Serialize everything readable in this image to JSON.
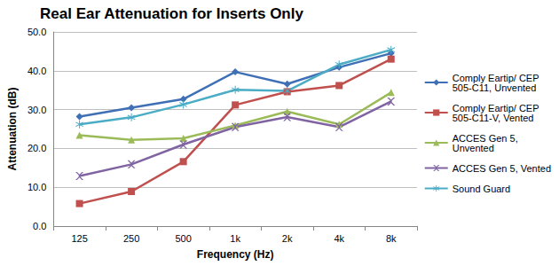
{
  "chart_data": {
    "type": "line",
    "title": "Real Ear Attenuation for Inserts Only",
    "x_label": "Frequency (Hz)",
    "y_label": "Attenuation (dB)",
    "categories": [
      "125",
      "250",
      "500",
      "1k",
      "2k",
      "4k",
      "8k"
    ],
    "series": [
      {
        "name": "Comply Eartip/ CEP 505-C11, Unvented",
        "color": "#3f6fb5",
        "marker": "diamond",
        "line_style": "solid",
        "values": [
          28.2,
          30.5,
          32.7,
          39.7,
          36.6,
          40.9,
          44.5
        ]
      },
      {
        "name": "Comply Eartip/ CEP 505-C11-V, Vented",
        "color": "#c0504d",
        "marker": "square",
        "line_style": "solid",
        "values": [
          5.8,
          8.9,
          16.6,
          31.2,
          34.6,
          36.2,
          43.0
        ]
      },
      {
        "name": "ACCES Gen 5, Unvented",
        "color": "#9bbb59",
        "marker": "triangle",
        "line_style": "solid",
        "values": [
          23.4,
          22.2,
          22.6,
          25.9,
          29.5,
          26.2,
          34.4
        ]
      },
      {
        "name": "ACCES Gen 5, Vented",
        "color": "#8064a2",
        "marker": "x",
        "line_style": "solid",
        "values": [
          12.9,
          15.9,
          21.0,
          25.5,
          28.1,
          25.5,
          32.1
        ]
      },
      {
        "name": "Sound Guard",
        "color": "#4bacc6",
        "marker": "star",
        "line_style": "solid",
        "values": [
          26.2,
          28.0,
          31.3,
          35.1,
          34.8,
          41.6,
          45.4
        ]
      }
    ],
    "ylim": [
      0,
      50
    ],
    "yticks": [
      {
        "value": 0,
        "label": "0.0"
      },
      {
        "value": 10,
        "label": "10.0"
      },
      {
        "value": 20,
        "label": "20.0"
      },
      {
        "value": 30,
        "label": "30.0"
      },
      {
        "value": 40,
        "label": "40.0"
      },
      {
        "value": 50,
        "label": "50.0"
      }
    ],
    "grid": true,
    "legend": "right"
  }
}
